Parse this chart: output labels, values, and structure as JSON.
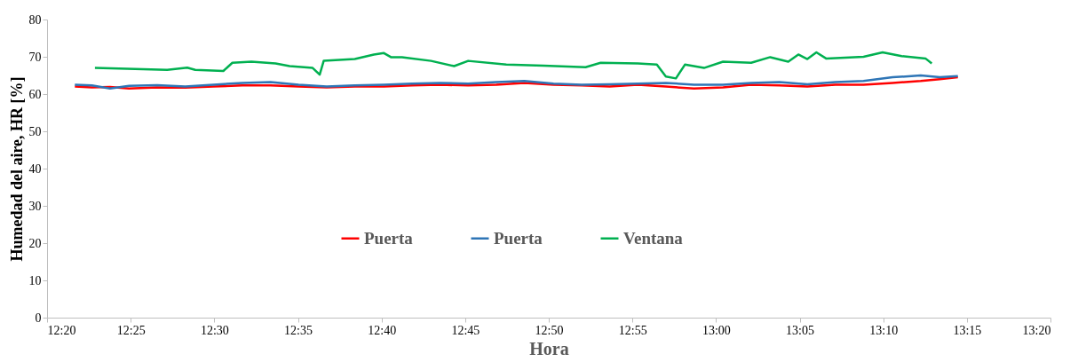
{
  "chart_data": {
    "type": "line",
    "xlabel": "Hora",
    "ylabel": "Humedad del aire, HR [%]",
    "xlim": [
      12.3333,
      13.3333
    ],
    "xticks": [
      {
        "value": 12.3333,
        "label": "12:20"
      },
      {
        "value": 12.4167,
        "label": "12:25"
      },
      {
        "value": 12.5,
        "label": "12:30"
      },
      {
        "value": 12.5833,
        "label": "12:35"
      },
      {
        "value": 12.6667,
        "label": "12:40"
      },
      {
        "value": 12.75,
        "label": "12:45"
      },
      {
        "value": 12.8333,
        "label": "12:50"
      },
      {
        "value": 12.9167,
        "label": "12:55"
      },
      {
        "value": 13,
        "label": "13:00"
      },
      {
        "value": 13.0833,
        "label": "13:05"
      },
      {
        "value": 13.1667,
        "label": "13:10"
      },
      {
        "value": 13.25,
        "label": "13:15"
      },
      {
        "value": 13.3333,
        "label": "13:20"
      }
    ],
    "ylim": [
      0,
      80
    ],
    "yticks": [
      0,
      10,
      20,
      30,
      40,
      50,
      60,
      70,
      80
    ],
    "grid": false,
    "legend": "bottom",
    "marker": "none",
    "line_style": "solid",
    "x": [
      12.361,
      12.378,
      12.396,
      12.415,
      12.443,
      12.471,
      12.499,
      12.528,
      12.556,
      12.584,
      12.612,
      12.64,
      12.669,
      12.697,
      12.725,
      12.753,
      12.781,
      12.809,
      12.838,
      12.866,
      12.894,
      12.922,
      12.95,
      12.978,
      13.007,
      13.035,
      13.063,
      13.091,
      13.119,
      13.147,
      13.176,
      13.204,
      13.223,
      13.241
    ],
    "series": [
      {
        "name": "Puerta",
        "color": "#ff0000",
        "values": [
          62,
          61.8,
          61.9,
          61.5,
          61.8,
          61.7,
          62,
          62.3,
          62.3,
          62,
          61.8,
          62,
          62,
          62.3,
          62.5,
          62.3,
          62.5,
          63,
          62.5,
          62.3,
          62,
          62.5,
          62,
          61.5,
          61.8,
          62.5,
          62.3,
          62,
          62.5,
          62.5,
          63,
          63.5,
          64,
          64.5
        ]
      },
      {
        "name": "Puerta",
        "color": "#2e75b6",
        "values": [
          62.5,
          62.3,
          61.5,
          62.2,
          62.4,
          62,
          62.5,
          63,
          63.2,
          62.5,
          62,
          62.3,
          62.5,
          62.8,
          63,
          62.8,
          63.2,
          63.5,
          62.8,
          62.5,
          62.6,
          62.8,
          63,
          62.5,
          62.5,
          63,
          63.2,
          62.6,
          63.2,
          63.5,
          64.5,
          65,
          64.5,
          64.8
        ]
      },
      {
        "name": "Ventana",
        "color": "#00b050",
        "x": [
          12.381,
          12.453,
          12.473,
          12.481,
          12.509,
          12.518,
          12.537,
          12.561,
          12.575,
          12.598,
          12.605,
          12.609,
          12.64,
          12.659,
          12.669,
          12.676,
          12.687,
          12.716,
          12.739,
          12.753,
          12.791,
          12.828,
          12.87,
          12.885,
          12.922,
          12.941,
          12.95,
          12.96,
          12.969,
          12.988,
          13.007,
          13.035,
          13.054,
          13.072,
          13.082,
          13.091,
          13.1,
          13.11,
          13.147,
          13.166,
          13.185,
          13.209,
          13.215
        ],
        "values": [
          67,
          66.5,
          67.1,
          66.5,
          66.2,
          68.4,
          68.7,
          68.2,
          67.5,
          67,
          65.2,
          68.9,
          69.4,
          70.6,
          71,
          69.9,
          69.9,
          68.9,
          67.5,
          68.9,
          67.9,
          67.6,
          67.2,
          68.4,
          68.2,
          67.9,
          64.7,
          64.2,
          67.9,
          67,
          68.7,
          68.4,
          69.9,
          68.7,
          70.6,
          69.4,
          71.2,
          69.5,
          70,
          71.2,
          70.2,
          69.5,
          68.2
        ]
      }
    ]
  }
}
